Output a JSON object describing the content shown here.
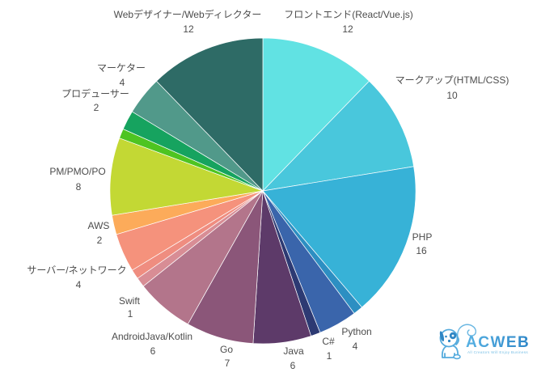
{
  "page": {
    "background": "#ffffff",
    "label_color": "#4c4c4c"
  },
  "chart_data": {
    "type": "pie",
    "title": "",
    "start_angle_deg": 0,
    "direction": "clockwise",
    "total": 98,
    "legend_position": "none",
    "labels": "outside, name above value",
    "slices": [
      {
        "label": "フロントエンド(React/Vue.js)",
        "value": 12,
        "color": "#61e2e3"
      },
      {
        "label": "マークアップ(HTML/CSS)",
        "value": 10,
        "color": "#49c7dc"
      },
      {
        "label": "PHP",
        "value": 16,
        "color": "#37b2d7"
      },
      {
        "label": "",
        "value": 1,
        "color": "#2d8fc2"
      },
      {
        "label": "Python",
        "value": 4,
        "color": "#3a65ab"
      },
      {
        "label": "C#",
        "value": 1,
        "color": "#2d3a73"
      },
      {
        "label": "Java",
        "value": 6,
        "color": "#5d3a69"
      },
      {
        "label": "Go",
        "value": 7,
        "color": "#8b5679"
      },
      {
        "label": "AndroidJava/Kotlin",
        "value": 6,
        "color": "#b3758b"
      },
      {
        "label": "Swift",
        "value": 1,
        "color": "#d88d95"
      },
      {
        "label": "",
        "value": 1,
        "color": "#ef8d80"
      },
      {
        "label": "サーバー/ネットワーク",
        "value": 4,
        "color": "#f5927c"
      },
      {
        "label": "AWS",
        "value": 2,
        "color": "#fcab5a"
      },
      {
        "label": "PM/PMO/PO",
        "value": 8,
        "color": "#c3d834"
      },
      {
        "label": "",
        "value": 1,
        "color": "#4ec421"
      },
      {
        "label": "プロデューサー",
        "value": 2,
        "color": "#16a35f"
      },
      {
        "label": "マーケター",
        "value": 4,
        "color": "#51998a"
      },
      {
        "label": "Webデザイナー/Webディレクター",
        "value": 12,
        "color": "#2e6b66"
      }
    ]
  },
  "logo": {
    "brand": "ACWEB",
    "tagline": "All Creators Will Enjoy Business",
    "brand_color_light": "#57b1e3",
    "brand_color_dark": "#2f87c8"
  }
}
